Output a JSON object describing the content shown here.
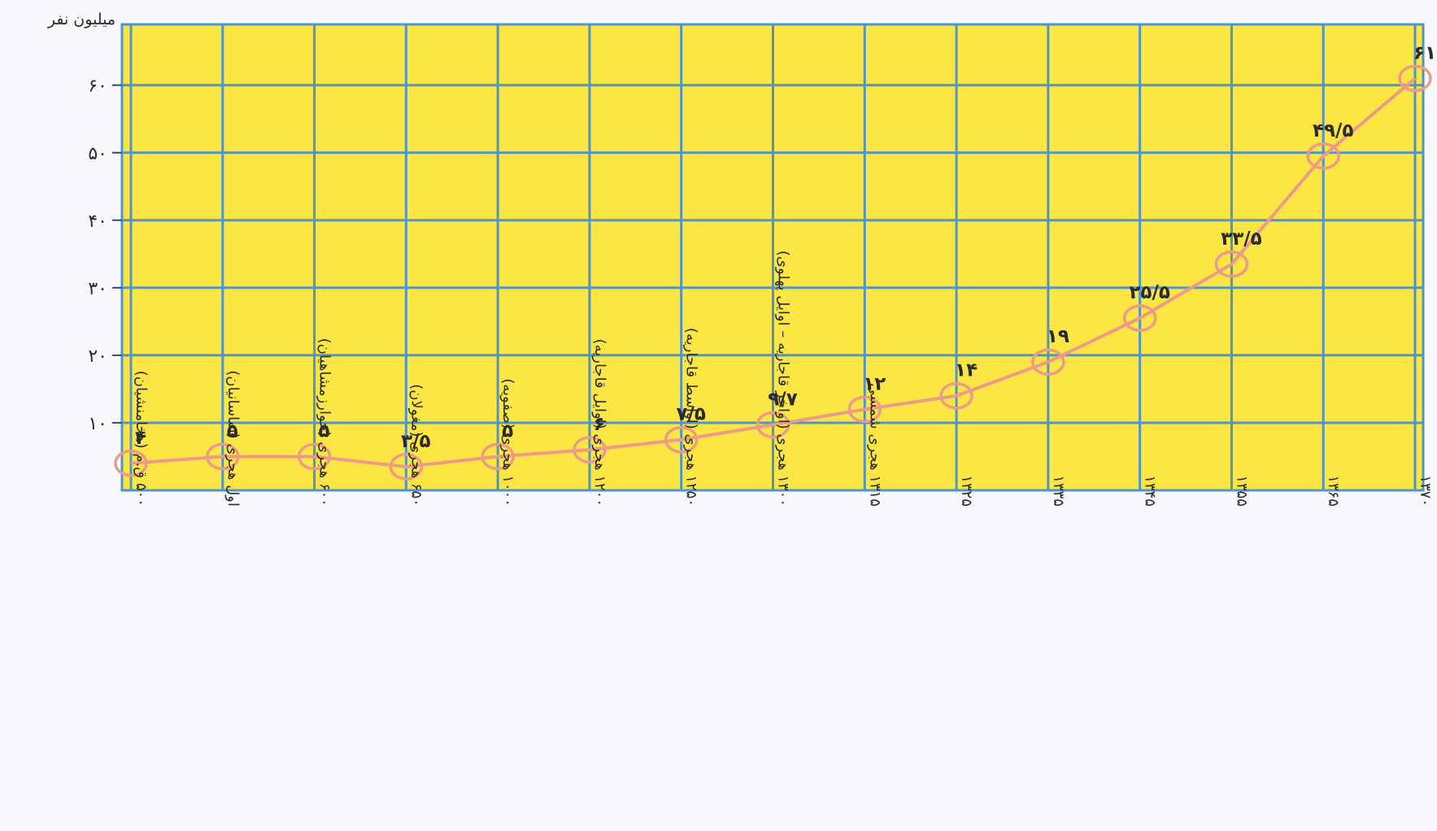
{
  "chart_data": {
    "type": "line",
    "title": "",
    "unit_label": "میلیون نفر",
    "categories": [
      "۵۰۰ ق.م (هخامنشیان)",
      "اول هجری (ساسانیان)",
      "۶۰۰ هجری (خوارزمشاهیان)",
      "۶۵۰ هجری (مغولان)",
      "۱۰۰۰ هجری (صفویه)",
      "۱۲۰۰ هجری (اوایل قاجاریه)",
      "۱۲۵۰ هجری (اواسط قاجاریه)",
      "۱۳۰۰ هجری (اواخر قاجاریه – اوایل پهلوی)",
      "۱۳۱۵ هجری شمسی",
      "۱۳۲۵",
      "۱۳۳۵",
      "۱۳۴۵",
      "۱۳۵۵",
      "۱۳۶۵",
      "۱۳۷۰"
    ],
    "values": [
      4,
      5,
      5,
      3.5,
      5,
      6,
      7.5,
      9.7,
      12,
      14,
      19,
      25.5,
      33.5,
      49.5,
      61
    ],
    "data_labels": [
      "۴",
      "۵",
      "۵",
      "۳/۵",
      "۵",
      "۶",
      "۷/۵",
      "۹/۷",
      "۱۲",
      "۱۴",
      "۱۹",
      "۲۵/۵",
      "۳۳/۵",
      "۴۹/۵",
      "۶۱"
    ],
    "y_ticks": [
      10,
      20,
      30,
      40,
      50,
      60
    ],
    "y_tick_labels": [
      "۱۰",
      "۲۰",
      "۳۰",
      "۴۰",
      "۵۰",
      "۶۰"
    ],
    "ylim": [
      0,
      69
    ],
    "grid": true,
    "colors": {
      "plot_background": "#fbe643",
      "grid": "#4f95c9",
      "line": "#ee9a88",
      "axis": "#2b4f78",
      "text": "#2b2b2b"
    }
  }
}
